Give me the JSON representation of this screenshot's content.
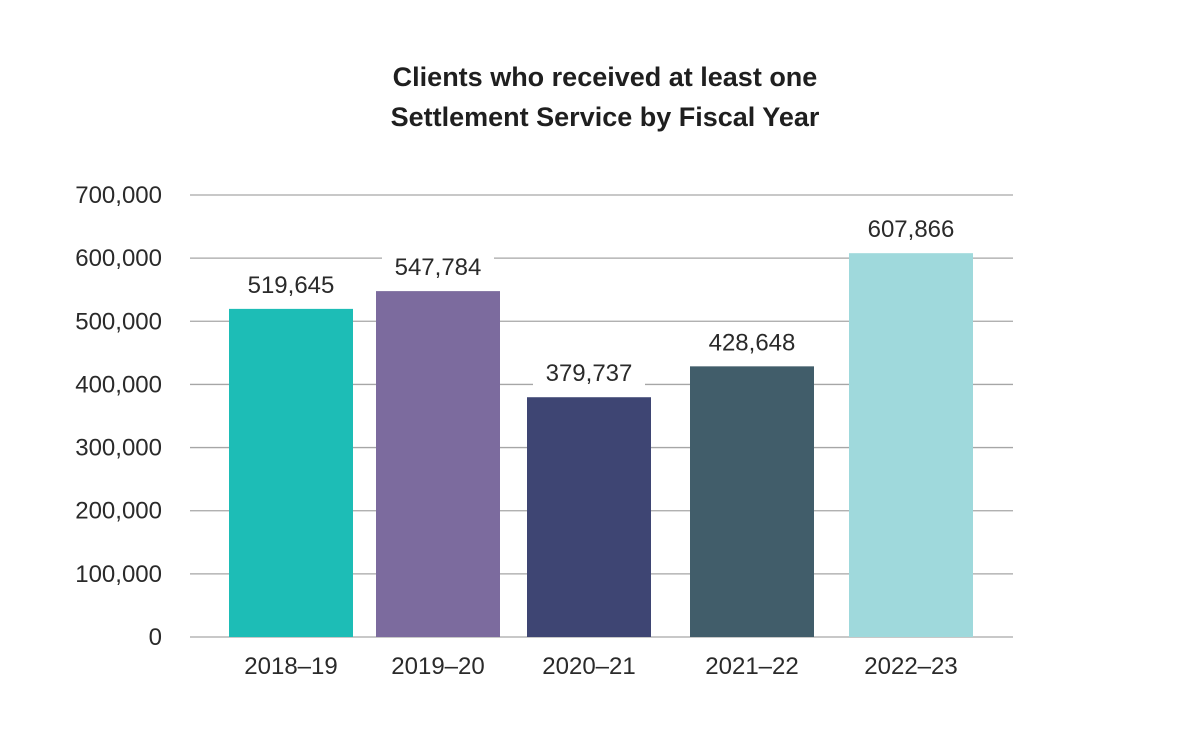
{
  "chart_data": {
    "type": "bar",
    "title_lines": [
      "Clients who received at least one",
      "Settlement Service by Fiscal Year"
    ],
    "categories": [
      "2018–19",
      "2019–20",
      "2020–21",
      "2021–22",
      "2022–23"
    ],
    "values": [
      519645,
      547784,
      379737,
      428648,
      607866
    ],
    "value_labels": [
      "519,645",
      "547,784",
      "379,737",
      "428,648",
      "607,866"
    ],
    "colors": [
      "#1dbdb6",
      "#7c6b9e",
      "#3e4573",
      "#415d6a",
      "#9fd9dc"
    ],
    "yticks": [
      0,
      100000,
      200000,
      300000,
      400000,
      500000,
      600000,
      700000
    ],
    "ytick_labels": [
      "0",
      "100,000",
      "200,000",
      "300,000",
      "400,000",
      "500,000",
      "600,000",
      "700,000"
    ],
    "ylim": [
      0,
      700000
    ],
    "grid": true,
    "gridline_color": "#a6a6a6",
    "xlabel": "",
    "ylabel": ""
  }
}
